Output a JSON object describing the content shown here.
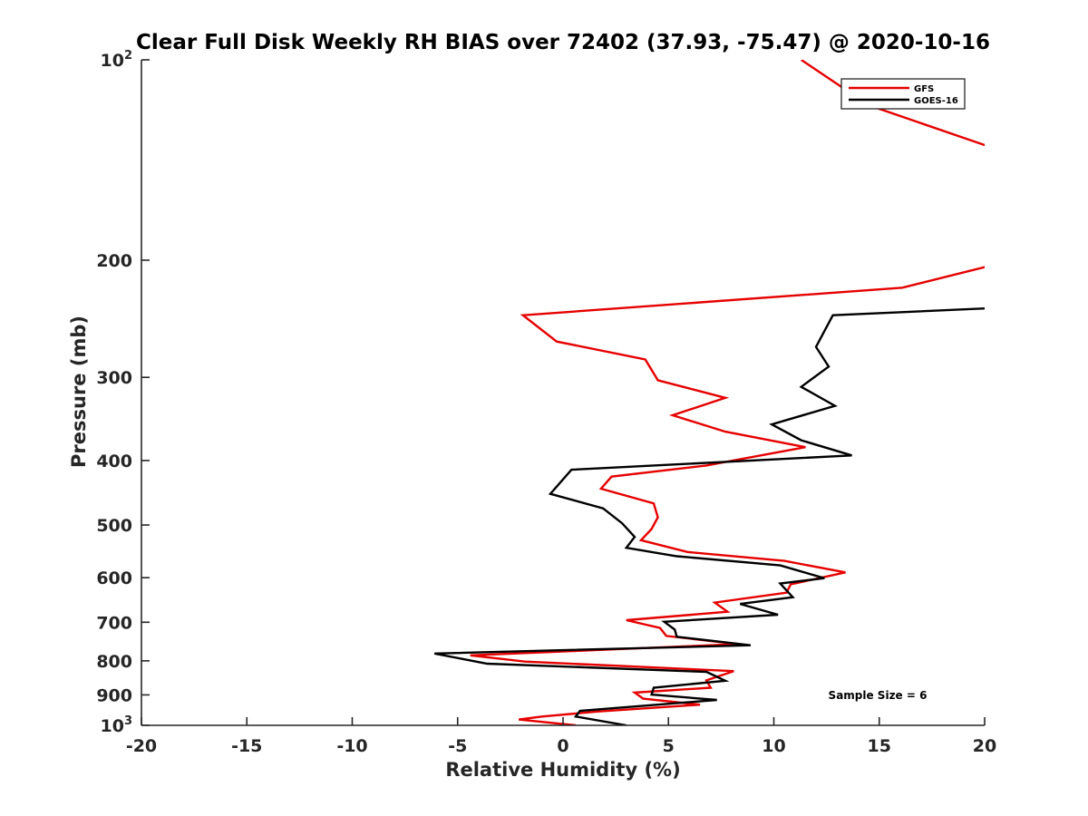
{
  "chart_data": {
    "type": "line",
    "title": "Clear Full Disk Weekly RH BIAS over 72402 (37.93, -75.47) @ 2020-10-16",
    "xlabel": "Relative Humidity (%)",
    "ylabel": "Pressure (mb)",
    "xlim": [
      -20,
      20
    ],
    "ylim": [
      100,
      1000
    ],
    "yscale": "log",
    "yreversed": true,
    "x_ticks": [
      -20,
      -15,
      -10,
      -5,
      0,
      5,
      10,
      15,
      20
    ],
    "x_tick_labels": [
      "-20",
      "-15",
      "-10",
      "-5",
      "0",
      "5",
      "10",
      "15",
      "20"
    ],
    "y_ticks": [
      {
        "value": 100,
        "base": "10",
        "exp": "2"
      },
      {
        "value": 200,
        "base": "200",
        "exp": ""
      },
      {
        "value": 300,
        "base": "300",
        "exp": ""
      },
      {
        "value": 400,
        "base": "400",
        "exp": ""
      },
      {
        "value": 500,
        "base": "500",
        "exp": ""
      },
      {
        "value": 600,
        "base": "600",
        "exp": ""
      },
      {
        "value": 700,
        "base": "700",
        "exp": ""
      },
      {
        "value": 800,
        "base": "800",
        "exp": ""
      },
      {
        "value": 900,
        "base": "900",
        "exp": ""
      },
      {
        "value": 1000,
        "base": "10",
        "exp": "3"
      }
    ],
    "legend_position": "top-right",
    "annotation": "Sample Size = 6",
    "series": [
      {
        "name": "GFS",
        "color": "#e60000",
        "points": [
          [
            11.3,
            100
          ],
          [
            14.5,
            117
          ],
          [
            20.5,
            136
          ],
          [
            20.5,
            203
          ],
          [
            16.1,
            220
          ],
          [
            -1.9,
            242
          ],
          [
            -0.3,
            265
          ],
          [
            3.9,
            282
          ],
          [
            4.5,
            303
          ],
          [
            7.7,
            322
          ],
          [
            5.2,
            342
          ],
          [
            7.7,
            362
          ],
          [
            11.5,
            382
          ],
          [
            6.8,
            407
          ],
          [
            2.3,
            423
          ],
          [
            1.8,
            441
          ],
          [
            4.3,
            464
          ],
          [
            4.5,
            487
          ],
          [
            4.2,
            507
          ],
          [
            3.7,
            527
          ],
          [
            5.9,
            549
          ],
          [
            10.5,
            566
          ],
          [
            13.4,
            589
          ],
          [
            10.8,
            614
          ],
          [
            10.6,
            632
          ],
          [
            7.2,
            654
          ],
          [
            7.8,
            675
          ],
          [
            3.0,
            695
          ],
          [
            4.6,
            714
          ],
          [
            4.9,
            734
          ],
          [
            8.3,
            755
          ],
          [
            -4.4,
            785
          ],
          [
            -1.8,
            802
          ],
          [
            8.1,
            829
          ],
          [
            6.8,
            856
          ],
          [
            7.0,
            878
          ],
          [
            3.4,
            893
          ],
          [
            3.8,
            912
          ],
          [
            6.5,
            931
          ],
          [
            1.7,
            953
          ],
          [
            -1.0,
            970
          ],
          [
            -2.1,
            980
          ],
          [
            0.6,
            1000
          ]
        ]
      },
      {
        "name": "GOES-16",
        "color": "#000000",
        "points": [
          [
            20.5,
            236
          ],
          [
            12.8,
            242
          ],
          [
            12.0,
            270
          ],
          [
            12.6,
            289
          ],
          [
            11.3,
            310
          ],
          [
            12.9,
            331
          ],
          [
            9.9,
            353
          ],
          [
            11.3,
            373
          ],
          [
            13.7,
            393
          ],
          [
            0.4,
            413
          ],
          [
            -0.6,
            449
          ],
          [
            1.9,
            472
          ],
          [
            2.8,
            497
          ],
          [
            3.4,
            521
          ],
          [
            3.0,
            541
          ],
          [
            5.4,
            557
          ],
          [
            10.3,
            575
          ],
          [
            12.4,
            601
          ],
          [
            10.3,
            612
          ],
          [
            10.9,
            642
          ],
          [
            8.4,
            657
          ],
          [
            10.2,
            682
          ],
          [
            4.8,
            699
          ],
          [
            5.3,
            718
          ],
          [
            5.4,
            736
          ],
          [
            8.9,
            758
          ],
          [
            -6.1,
            780
          ],
          [
            -3.6,
            808
          ],
          [
            6.8,
            831
          ],
          [
            7.7,
            857
          ],
          [
            4.3,
            878
          ],
          [
            4.2,
            899
          ],
          [
            7.3,
            916
          ],
          [
            0.8,
            951
          ],
          [
            0.6,
            970
          ],
          [
            3.0,
            1000
          ]
        ]
      }
    ]
  }
}
